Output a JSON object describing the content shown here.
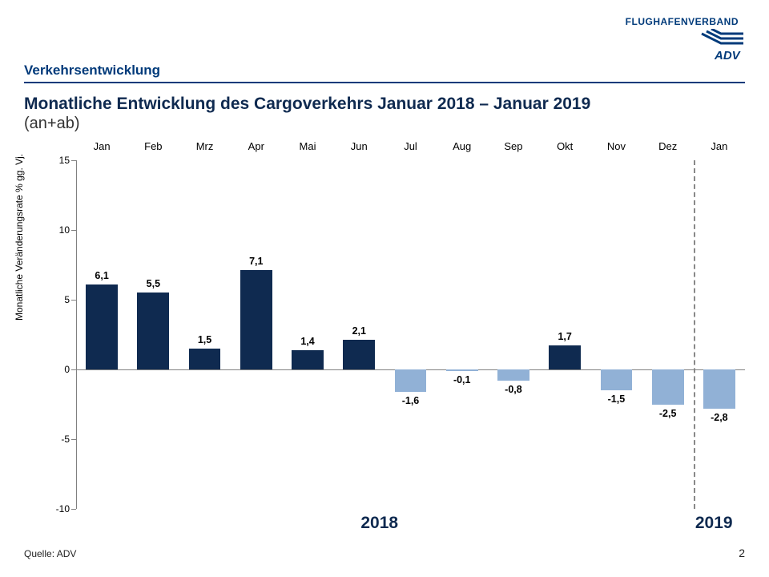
{
  "brand": {
    "text": "FLUGHAFENVERBAND",
    "color": "#003a7a"
  },
  "section_title": "Verkehrsentwicklung",
  "headline": "Monatliche Entwicklung des Cargoverkehrs Januar 2018 – Januar 2019",
  "subhead": "(an+ab)",
  "source": "Quelle: ADV",
  "page_number": "2",
  "chart": {
    "type": "bar",
    "y_axis_title": "Monatliche Veränderungsrate % gg. Vj.",
    "ylim": [
      -10,
      15
    ],
    "ytick_step": 5,
    "yticks": [
      -10,
      -5,
      0,
      5,
      10,
      15
    ],
    "categories": [
      "Jan",
      "Feb",
      "Mrz",
      "Apr",
      "Mai",
      "Jun",
      "Jul",
      "Aug",
      "Sep",
      "Okt",
      "Nov",
      "Dez",
      "Jan"
    ],
    "values": [
      6.1,
      5.5,
      1.5,
      7.1,
      1.4,
      2.1,
      -1.6,
      -0.1,
      -0.8,
      1.7,
      -1.5,
      -2.5,
      -2.8
    ],
    "value_labels": [
      "6,1",
      "5,5",
      "1,5",
      "7,1",
      "1,4",
      "2,1",
      "-1,6",
      "-0,1",
      "-0,8",
      "1,7",
      "-1,5",
      "-2,5",
      "-2,8"
    ],
    "bar_color_positive": "#0f2a50",
    "bar_color_negative": "#91b1d6",
    "background_color": "#ffffff",
    "axis_color": "#808080",
    "bar_width_ratio": 0.62,
    "label_fontsize": 12.5,
    "month_fontsize": 13,
    "divider_after_index": 11,
    "year_groups": [
      {
        "label": "2018",
        "start": 0,
        "end": 11
      },
      {
        "label": "2019",
        "start": 12,
        "end": 12
      }
    ]
  }
}
